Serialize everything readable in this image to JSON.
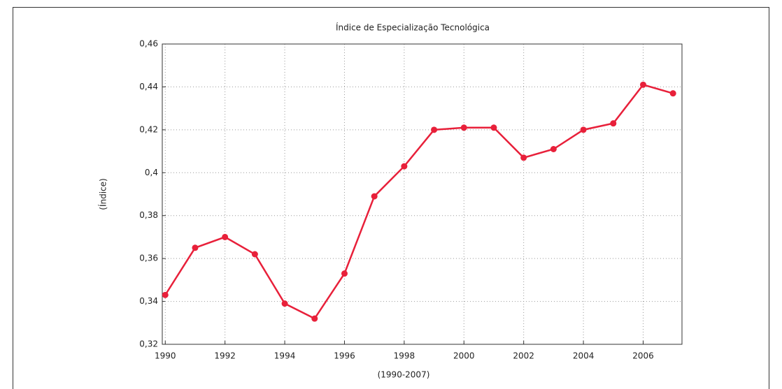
{
  "chart_data": {
    "type": "line",
    "title": "Índice de Especialização Tecnológica",
    "x_label": "(1990-2007)",
    "y_label": "(Índice)",
    "x": [
      1990,
      1991,
      1992,
      1993,
      1994,
      1995,
      1996,
      1997,
      1998,
      1999,
      2000,
      2001,
      2002,
      2003,
      2004,
      2005,
      2006,
      2007
    ],
    "series": [
      {
        "name": "Índice",
        "color": "#e8203a",
        "values": [
          0.343,
          0.365,
          0.37,
          0.362,
          0.339,
          0.332,
          0.353,
          0.389,
          0.403,
          0.42,
          0.421,
          0.421,
          0.407,
          0.411,
          0.42,
          0.423,
          0.441,
          0.437
        ]
      }
    ],
    "xlim": [
      1989.9,
      2007.3
    ],
    "xticks": [
      1990,
      1992,
      1994,
      1996,
      1998,
      2000,
      2002,
      2004,
      2006
    ],
    "ylim": [
      0.32,
      0.46
    ],
    "yticks": [
      {
        "value": 0.32,
        "label": "0,32"
      },
      {
        "value": 0.34,
        "label": "0,34"
      },
      {
        "value": 0.36,
        "label": "0,36"
      },
      {
        "value": 0.38,
        "label": "0,38"
      },
      {
        "value": 0.4,
        "label": "0,4"
      },
      {
        "value": 0.42,
        "label": "0,42"
      },
      {
        "value": 0.44,
        "label": "0,44"
      },
      {
        "value": 0.46,
        "label": "0,46"
      }
    ],
    "grid": true
  }
}
